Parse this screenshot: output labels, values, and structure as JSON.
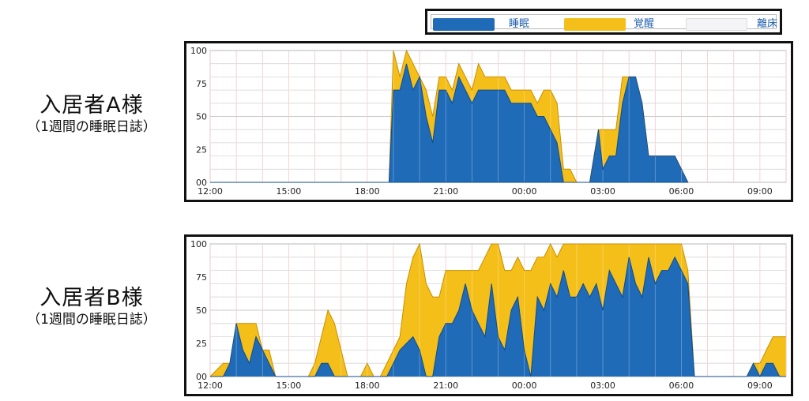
{
  "legend": {
    "items": [
      {
        "label": "睡眠",
        "color": "#1f6bb8"
      },
      {
        "label": "覚醒",
        "color": "#f5bf1a"
      },
      {
        "label": "離床",
        "color": "#f4f4f6"
      }
    ]
  },
  "residents": [
    {
      "name": "入居者A様",
      "subtitle": "（1週間の睡眠日誌）"
    },
    {
      "name": "入居者B様",
      "subtitle": "（1週間の睡眠日誌）"
    }
  ],
  "chart_data": [
    {
      "type": "area",
      "title": "",
      "xlabel": "",
      "ylabel": "",
      "ylim": [
        0,
        100
      ],
      "yticks": [
        0,
        25,
        50,
        75,
        100
      ],
      "xlim": [
        "12:00",
        "10:00(+1)"
      ],
      "xticks": [
        "12:00",
        "15:00",
        "18:00",
        "21:00",
        "00:00",
        "03:00",
        "06:00",
        "09:00"
      ],
      "grid": true,
      "stacked": true,
      "x": [
        "12:00",
        "18:30",
        "18:50",
        "19:00",
        "19:15",
        "19:30",
        "19:45",
        "20:00",
        "20:15",
        "20:30",
        "20:45",
        "21:00",
        "21:15",
        "21:30",
        "21:45",
        "22:00",
        "22:15",
        "22:30",
        "22:45",
        "23:00",
        "23:15",
        "23:30",
        "23:45",
        "00:00",
        "00:15",
        "00:30",
        "00:45",
        "01:00",
        "01:15",
        "01:30",
        "01:45",
        "02:00",
        "02:15",
        "02:30",
        "02:40",
        "02:50",
        "03:00",
        "03:15",
        "03:30",
        "03:45",
        "04:00",
        "04:15",
        "04:30",
        "04:45",
        "05:00",
        "05:15",
        "05:30",
        "05:45",
        "06:00",
        "06:15",
        "12:00"
      ],
      "series": [
        {
          "name": "睡眠",
          "color": "#1f6bb8",
          "values": [
            0,
            0,
            0,
            70,
            70,
            90,
            70,
            80,
            50,
            30,
            70,
            70,
            60,
            80,
            70,
            60,
            70,
            70,
            70,
            70,
            70,
            60,
            60,
            60,
            60,
            50,
            50,
            40,
            30,
            0,
            0,
            0,
            0,
            0,
            20,
            40,
            10,
            20,
            20,
            60,
            80,
            80,
            60,
            20,
            20,
            20,
            20,
            20,
            10,
            0,
            0
          ]
        },
        {
          "name": "覚醒",
          "color": "#f5bf1a",
          "values": [
            0,
            0,
            0,
            30,
            10,
            10,
            20,
            0,
            20,
            20,
            10,
            10,
            10,
            10,
            10,
            10,
            20,
            10,
            10,
            10,
            10,
            10,
            10,
            10,
            10,
            10,
            20,
            30,
            30,
            10,
            10,
            0,
            0,
            0,
            0,
            0,
            30,
            20,
            20,
            20,
            0,
            0,
            0,
            0,
            0,
            0,
            0,
            0,
            0,
            0,
            0
          ]
        }
      ]
    },
    {
      "type": "area",
      "title": "",
      "xlabel": "",
      "ylabel": "",
      "ylim": [
        0,
        100
      ],
      "yticks": [
        0,
        25,
        50,
        75,
        100
      ],
      "xlim": [
        "12:00",
        "10:00(+1)"
      ],
      "xticks": [
        "12:00",
        "15:00",
        "18:00",
        "21:00",
        "00:00",
        "03:00",
        "06:00",
        "09:00"
      ],
      "grid": true,
      "stacked": true,
      "x": [
        "12:00",
        "12:30",
        "12:45",
        "13:00",
        "13:15",
        "13:30",
        "13:45",
        "14:00",
        "14:15",
        "14:30",
        "14:45",
        "15:00",
        "15:15",
        "15:30",
        "15:45",
        "16:00",
        "16:15",
        "16:30",
        "16:45",
        "17:00",
        "17:15",
        "17:30",
        "17:45",
        "18:00",
        "18:15",
        "18:30",
        "18:45",
        "19:00",
        "19:15",
        "19:30",
        "19:45",
        "20:00",
        "20:15",
        "20:30",
        "20:45",
        "21:00",
        "21:15",
        "21:30",
        "21:45",
        "22:00",
        "22:15",
        "22:30",
        "22:45",
        "23:00",
        "23:15",
        "23:30",
        "23:45",
        "00:00",
        "00:15",
        "00:30",
        "00:45",
        "01:00",
        "01:15",
        "01:30",
        "01:45",
        "02:00",
        "02:15",
        "02:30",
        "02:45",
        "03:00",
        "03:15",
        "03:30",
        "03:45",
        "04:00",
        "04:15",
        "04:30",
        "04:45",
        "05:00",
        "05:15",
        "05:30",
        "05:45",
        "06:00",
        "06:15",
        "06:30",
        "06:45",
        "07:00",
        "07:30",
        "08:00",
        "08:30",
        "08:45",
        "09:00",
        "09:15",
        "09:30",
        "09:45",
        "10:00"
      ],
      "series": [
        {
          "name": "睡眠",
          "color": "#1f6bb8",
          "values": [
            0,
            0,
            10,
            40,
            20,
            10,
            30,
            20,
            10,
            0,
            0,
            0,
            0,
            0,
            0,
            0,
            10,
            10,
            0,
            0,
            0,
            0,
            0,
            0,
            0,
            0,
            0,
            10,
            20,
            25,
            30,
            20,
            0,
            0,
            30,
            40,
            40,
            50,
            70,
            50,
            40,
            30,
            70,
            30,
            20,
            50,
            60,
            20,
            0,
            60,
            50,
            70,
            60,
            80,
            60,
            60,
            70,
            60,
            70,
            50,
            80,
            70,
            60,
            90,
            70,
            60,
            90,
            70,
            80,
            80,
            90,
            80,
            70,
            0,
            0,
            0,
            0,
            0,
            0,
            10,
            0,
            10,
            10,
            0,
            0
          ]
        },
        {
          "name": "覚醒",
          "color": "#f5bf1a",
          "values": [
            0,
            10,
            0,
            0,
            20,
            30,
            10,
            0,
            10,
            0,
            0,
            0,
            0,
            0,
            0,
            10,
            20,
            40,
            40,
            20,
            0,
            0,
            0,
            10,
            0,
            0,
            10,
            10,
            10,
            45,
            60,
            80,
            70,
            60,
            30,
            40,
            40,
            30,
            10,
            30,
            40,
            60,
            30,
            70,
            60,
            30,
            30,
            60,
            80,
            30,
            40,
            30,
            30,
            20,
            40,
            40,
            30,
            40,
            30,
            50,
            20,
            30,
            40,
            10,
            30,
            40,
            10,
            30,
            20,
            20,
            10,
            20,
            10,
            0,
            0,
            0,
            0,
            0,
            0,
            0,
            10,
            10,
            20,
            30,
            30
          ]
        }
      ]
    }
  ]
}
